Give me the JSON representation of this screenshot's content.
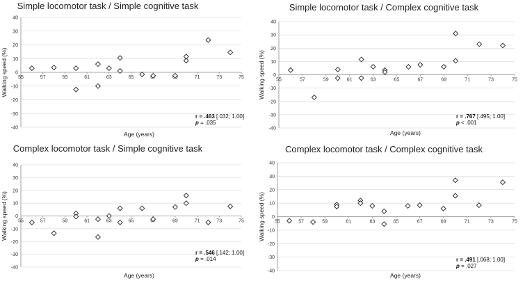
{
  "chart_data": [
    {
      "type": "scatter",
      "title": "Simple locomotor task / Simple cognitive task",
      "xlabel": "Age (years)",
      "ylabel": "Walking speed (%)",
      "xlim": [
        55,
        75
      ],
      "ylim": [
        -40,
        40
      ],
      "xticks": [
        55,
        57,
        59,
        61,
        63,
        65,
        67,
        69,
        71,
        73,
        75
      ],
      "yticks": [
        -40,
        -30,
        -20,
        -10,
        0,
        10,
        20,
        30,
        40
      ],
      "marker": "diamond",
      "points": [
        [
          56,
          3
        ],
        [
          58,
          3.5
        ],
        [
          60,
          3
        ],
        [
          60,
          -12.5
        ],
        [
          62,
          6
        ],
        [
          62,
          -10
        ],
        [
          63,
          3
        ],
        [
          64,
          10.5
        ],
        [
          64,
          1
        ],
        [
          66,
          -1.5
        ],
        [
          67,
          -2.5
        ],
        [
          69,
          -2.5
        ],
        [
          70,
          8.5
        ],
        [
          70,
          11.5
        ],
        [
          72,
          23.5
        ],
        [
          74,
          14.5
        ]
      ],
      "stat": {
        "r_label": "r = .463",
        "ci": "[.032; 1.00]",
        "p_symbol": "p",
        "p_text": "= .035"
      }
    },
    {
      "type": "scatter",
      "title": "Simple locomotor task / Complex cognitive task",
      "xlabel": "Age (years)",
      "ylabel": "Walking speed (%)",
      "xlim": [
        55,
        75
      ],
      "ylim": [
        -40,
        40
      ],
      "xticks": [
        55,
        57,
        59,
        61,
        63,
        65,
        67,
        69,
        71,
        73,
        75
      ],
      "yticks": [
        -40,
        -30,
        -20,
        -10,
        0,
        10,
        20,
        30,
        40
      ],
      "marker": "diamond",
      "points": [
        [
          56,
          3.5
        ],
        [
          58,
          -17
        ],
        [
          60,
          4
        ],
        [
          60,
          -2.5
        ],
        [
          62,
          11.5
        ],
        [
          62,
          -2.5
        ],
        [
          63,
          6
        ],
        [
          64,
          3.5
        ],
        [
          64,
          2
        ],
        [
          66,
          6
        ],
        [
          67,
          7.5
        ],
        [
          69,
          6
        ],
        [
          70,
          10.5
        ],
        [
          70,
          31
        ],
        [
          72,
          23
        ],
        [
          74,
          22
        ]
      ],
      "stat": {
        "r_label": "r = .767",
        "ci": "[.495; 1.00]",
        "p_symbol": "p",
        "p_text": "< .001"
      }
    },
    {
      "type": "scatter",
      "title": "Complex locomotor task / Simple cognitive task",
      "xlabel": "Age (years)",
      "ylabel": "Walking speed (%)",
      "xlim": [
        55,
        75
      ],
      "ylim": [
        -40,
        40
      ],
      "xticks": [
        55,
        57,
        59,
        61,
        63,
        65,
        67,
        69,
        71,
        73,
        75
      ],
      "yticks": [
        -40,
        -30,
        -20,
        -10,
        0,
        10,
        20,
        30,
        40
      ],
      "marker": "diamond",
      "points": [
        [
          56,
          -5
        ],
        [
          58,
          -13.5
        ],
        [
          60,
          2
        ],
        [
          60,
          -0.5
        ],
        [
          62,
          -2.5
        ],
        [
          62,
          -16.5
        ],
        [
          63,
          0
        ],
        [
          64,
          6
        ],
        [
          64,
          -5
        ],
        [
          66,
          6
        ],
        [
          67,
          -2.5
        ],
        [
          69,
          7
        ],
        [
          70,
          10
        ],
        [
          70,
          16
        ],
        [
          72,
          -5
        ],
        [
          74,
          7.5
        ]
      ],
      "stat": {
        "r_label": "r = .546",
        "ci": "[.142; 1.00]",
        "p_symbol": "p",
        "p_text": "= .014"
      }
    },
    {
      "type": "scatter",
      "title": "Complex locomotor task / Complex cognitive task",
      "xlabel": "Age (years)",
      "ylabel": "Walking speed (%)",
      "xlim": [
        55,
        75
      ],
      "ylim": [
        -40,
        40
      ],
      "xticks": [
        55,
        57,
        59,
        61,
        63,
        65,
        67,
        69,
        71,
        73,
        75
      ],
      "yticks": [
        -40,
        -30,
        -20,
        -10,
        0,
        10,
        20,
        30,
        40
      ],
      "marker": "diamond",
      "points": [
        [
          56,
          -3
        ],
        [
          58,
          -4
        ],
        [
          60,
          9
        ],
        [
          60,
          7.5
        ],
        [
          62,
          12
        ],
        [
          62,
          10
        ],
        [
          63,
          8
        ],
        [
          64,
          4
        ],
        [
          64,
          -5.5
        ],
        [
          66,
          8
        ],
        [
          67,
          8.5
        ],
        [
          69,
          6
        ],
        [
          70,
          15.5
        ],
        [
          70,
          27
        ],
        [
          72,
          8.5
        ],
        [
          74,
          25.5
        ]
      ],
      "stat": {
        "r_label": "r = .491",
        "ci": "[.068; 1.00]",
        "p_symbol": "p",
        "p_text": "= .027"
      }
    }
  ]
}
